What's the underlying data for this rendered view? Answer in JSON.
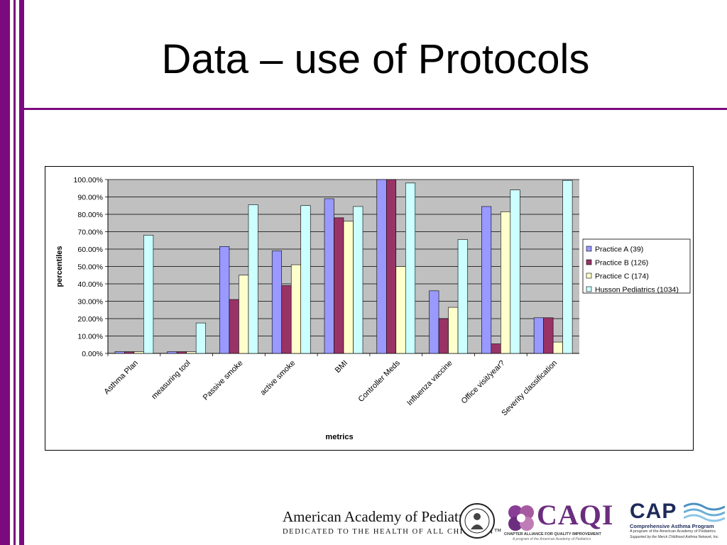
{
  "slide": {
    "title": "Data – use of Protocols"
  },
  "colors": {
    "accent": "#7a0a7e",
    "plot_background": "#c0c0c0"
  },
  "chart_data": {
    "type": "bar",
    "title": "",
    "xlabel": "metrics",
    "ylabel": "percentiles",
    "ylim": [
      0,
      100
    ],
    "y_ticks": [
      "0.00%",
      "10.00%",
      "20.00%",
      "30.00%",
      "40.00%",
      "50.00%",
      "60.00%",
      "70.00%",
      "80.00%",
      "90.00%",
      "100.00%"
    ],
    "grid": true,
    "legend_position": "right",
    "categories": [
      "Asthma Plan",
      "measuring tool",
      "Passive smoke",
      "active smoke",
      "BMI",
      "Controller Meds",
      "Influenza vaccine",
      "Office visit/year?",
      "Severity classification"
    ],
    "series": [
      {
        "name": "Practice A (39)",
        "color": "#9999ff",
        "values": [
          1,
          1,
          61.5,
          59,
          89,
          100,
          36,
          84.5,
          20.5
        ]
      },
      {
        "name": "Practice B (126)",
        "color": "#993366",
        "values": [
          1,
          1,
          31,
          39,
          78,
          100,
          20,
          5.5,
          20.5
        ]
      },
      {
        "name": "Practice C (174)",
        "color": "#ffffcc",
        "values": [
          1,
          1,
          45,
          51,
          76,
          50,
          26.5,
          81.5,
          6.5
        ]
      },
      {
        "name": "Husson Pediatrics (1034)",
        "color": "#ccffff",
        "values": [
          68,
          17.5,
          85.5,
          85,
          84.5,
          98,
          65.5,
          94,
          99.5
        ]
      }
    ]
  },
  "footer": {
    "aap_name": "American Academy of Pediatrics",
    "aap_tagline": "DEDICATED TO THE HEALTH OF ALL CHILDREN™",
    "caqi_text": "CAQI",
    "caqi_subtitle": "CHAPTER ALLIANCE FOR QUALITY IMPROVEMENT",
    "caqi_program": "A program of the American Academy of Pediatrics",
    "cap_text": "CAP",
    "cap_subtitle": "Comprehensive Asthma Program",
    "cap_program": "A program of the American Academy of Pediatrics",
    "cap_support": "Supported by the Merck Childhood Asthma Network, Inc."
  }
}
